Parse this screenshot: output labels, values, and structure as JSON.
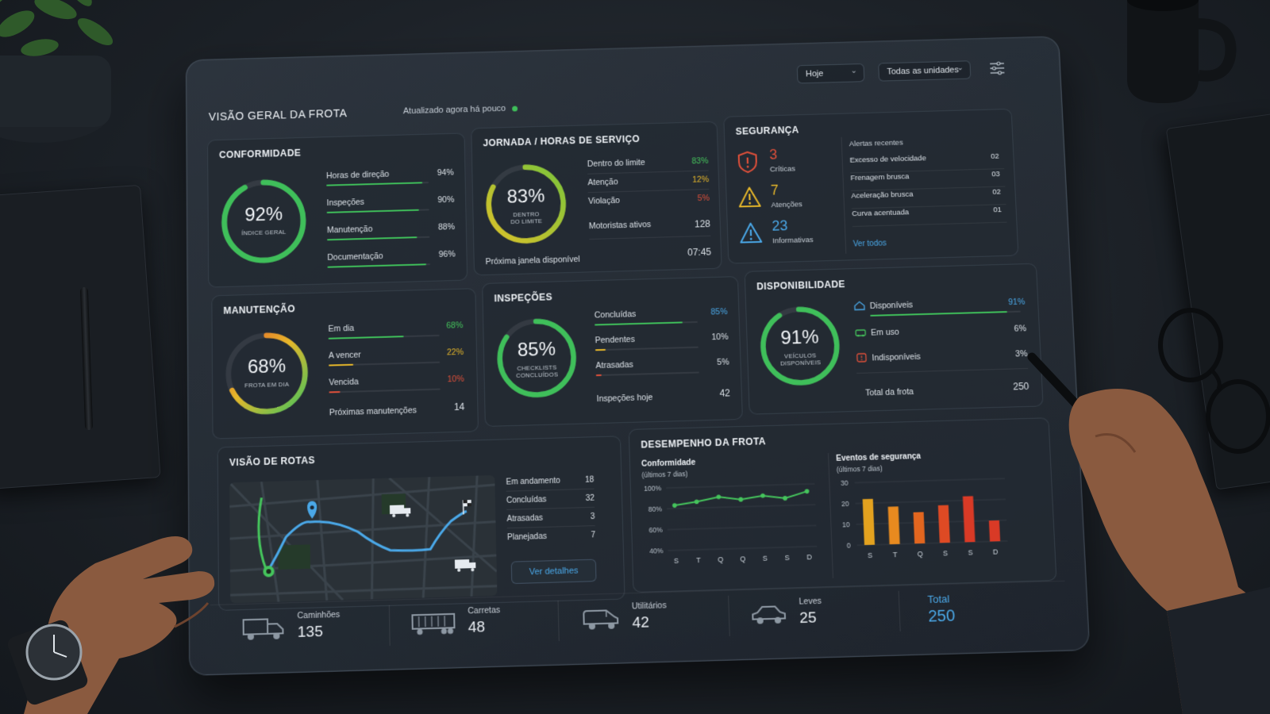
{
  "header": {
    "title": "VISÃO GERAL DA FROTA",
    "updated": "Atualizado agora há pouco",
    "period": "Hoje",
    "units": "Todas as unidades"
  },
  "compliance": {
    "title": "CONFORMIDADE",
    "gauge_value": "92%",
    "gauge_label": "ÍNDICE GERAL",
    "gauge_fraction": 0.92,
    "rows": [
      {
        "label": "Horas de direção",
        "value": "94%",
        "fraction": 0.94
      },
      {
        "label": "Inspeções",
        "value": "90%",
        "fraction": 0.9
      },
      {
        "label": "Manutenção",
        "value": "88%",
        "fraction": 0.88
      },
      {
        "label": "Documentação",
        "value": "96%",
        "fraction": 0.96
      }
    ]
  },
  "hours": {
    "title": "JORNADA / HORAS DE SERVIÇO",
    "gauge_value": "83%",
    "gauge_label_1": "DENTRO",
    "gauge_label_2": "DO LIMITE",
    "gauge_fraction": 0.83,
    "rows": [
      {
        "label": "Dentro do limite",
        "value": "83%"
      },
      {
        "label": "Atenção",
        "value": "12%"
      },
      {
        "label": "Violação",
        "value": "5%"
      },
      {
        "label": "Motoristas ativos",
        "value": "128"
      }
    ],
    "next_window_label": "Próxima janela disponível",
    "next_window_value": "07:45"
  },
  "security": {
    "title": "SEGURANÇA",
    "critical_count": "3",
    "critical_label": "Críticas",
    "warning_count": "7",
    "warning_label": "Atenções",
    "info_count": "23",
    "info_label": "Informativas",
    "alerts_head": "Alertas recentes",
    "alerts": [
      {
        "label": "Excesso de velocidade",
        "value": "02"
      },
      {
        "label": "Frenagem brusca",
        "value": "03"
      },
      {
        "label": "Aceleração brusca",
        "value": "02"
      },
      {
        "label": "Curva acentuada",
        "value": "01"
      }
    ],
    "view_all": "Ver todos"
  },
  "maintenance": {
    "title": "MANUTENÇÃO",
    "gauge_value": "68%",
    "gauge_label": "FROTA EM DIA",
    "gauge_fraction": 0.68,
    "rows": [
      {
        "label": "Em dia",
        "value": "68%",
        "fraction": 0.68
      },
      {
        "label": "A vencer",
        "value": "22%",
        "fraction": 0.22
      },
      {
        "label": "Vencida",
        "value": "10%",
        "fraction": 0.1
      }
    ],
    "next_label": "Próximas manutenções",
    "next_value": "14"
  },
  "inspections": {
    "title": "INSPEÇÕES",
    "gauge_value": "85%",
    "gauge_label_1": "CHECKLISTS",
    "gauge_label_2": "CONCLUÍDOS",
    "gauge_fraction": 0.85,
    "rows": [
      {
        "label": "Concluídas",
        "value": "85%",
        "fraction": 0.85
      },
      {
        "label": "Pendentes",
        "value": "10%",
        "fraction": 0.1
      },
      {
        "label": "Atrasadas",
        "value": "5%",
        "fraction": 0.05
      }
    ],
    "today_label": "Inspeções hoje",
    "today_value": "42"
  },
  "availability": {
    "title": "DISPONIBILIDADE",
    "gauge_value": "91%",
    "gauge_label_1": "VEÍCULOS",
    "gauge_label_2": "DISPONÍVEIS",
    "gauge_fraction": 0.91,
    "rows": [
      {
        "label": "Disponíveis",
        "value": "91%",
        "fraction": 0.91
      },
      {
        "label": "Em uso",
        "value": "6%"
      },
      {
        "label": "Indisponíveis",
        "value": "3%"
      }
    ],
    "total_label": "Total da frota",
    "total_value": "250"
  },
  "routes": {
    "title": "VISÃO DE ROTAS",
    "rows": [
      {
        "label": "Em andamento",
        "value": "18"
      },
      {
        "label": "Concluídas",
        "value": "32"
      },
      {
        "label": "Atrasadas",
        "value": "3"
      },
      {
        "label": "Planejadas",
        "value": "7"
      }
    ],
    "details_button": "Ver detalhes"
  },
  "performance": {
    "title": "DESEMPENHO DA FROTA",
    "compliance_title": "Conformidade",
    "compliance_sub": "(últimos 7 dias)",
    "safety_title": "Eventos de segurança",
    "safety_sub": "(últimos 7 dias)"
  },
  "chart_data": [
    {
      "type": "line",
      "title": "Conformidade",
      "subtitle": "(últimos 7 dias)",
      "categories": [
        "S",
        "T",
        "Q",
        "Q",
        "S",
        "S",
        "D"
      ],
      "values": [
        83,
        86,
        90,
        87,
        90,
        87,
        93
      ],
      "ylim": [
        40,
        100
      ],
      "yticks": [
        "100%",
        "80%",
        "60%",
        "40%"
      ],
      "grid": true,
      "color": "#45c45c"
    },
    {
      "type": "bar",
      "title": "Eventos de segurança",
      "subtitle": "(últimos 7 dias)",
      "categories": [
        "S",
        "T",
        "Q",
        "S",
        "S",
        "D"
      ],
      "values": [
        22,
        18,
        15,
        18,
        22,
        10
      ],
      "ylim": [
        0,
        30
      ],
      "yticks": [
        "30",
        "20",
        "10",
        "0"
      ],
      "grid": true,
      "colors": [
        "#e3a21f",
        "#e88a1f",
        "#e2661f",
        "#de4a24",
        "#d93a26",
        "#d93a26"
      ]
    }
  ],
  "fleet": {
    "trucks_label": "Caminhões",
    "trucks_value": "135",
    "trailers_label": "Carretas",
    "trailers_value": "48",
    "utility_label": "Utilitários",
    "utility_value": "42",
    "light_label": "Leves",
    "light_value": "25",
    "total_label": "Total",
    "total_value": "250"
  },
  "colors": {
    "green": "#45c45c",
    "yellow": "#e6b72a",
    "red": "#e0503a",
    "blue": "#4aa8e8"
  }
}
